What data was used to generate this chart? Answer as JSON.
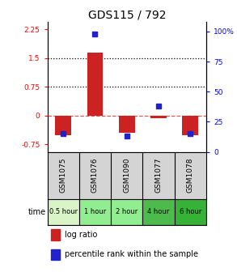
{
  "title": "GDS115 / 792",
  "samples": [
    "GSM1075",
    "GSM1076",
    "GSM1090",
    "GSM1077",
    "GSM1078"
  ],
  "time_labels": [
    "0.5 hour",
    "1 hour",
    "2 hour",
    "4 hour",
    "6 hour"
  ],
  "time_colors": [
    "#d9f5c8",
    "#90ee90",
    "#90ee90",
    "#4cbb4c",
    "#36b336"
  ],
  "log_ratios": [
    -0.52,
    1.65,
    -0.45,
    -0.06,
    -0.52
  ],
  "percentile_ranks": [
    15,
    98,
    13,
    38,
    15
  ],
  "bar_color": "#cc2222",
  "dot_color": "#2222cc",
  "ylim_left": [
    -0.95,
    2.45
  ],
  "ylim_right": [
    0,
    108
  ],
  "yticks_left": [
    -0.75,
    0,
    0.75,
    1.5,
    2.25
  ],
  "yticks_right": [
    0,
    25,
    50,
    75,
    100
  ],
  "hlines": [
    0.75,
    1.5
  ],
  "zero_line": 0,
  "gsm_bg_color": "#d4d4d4",
  "plot_bg": "#ffffff"
}
